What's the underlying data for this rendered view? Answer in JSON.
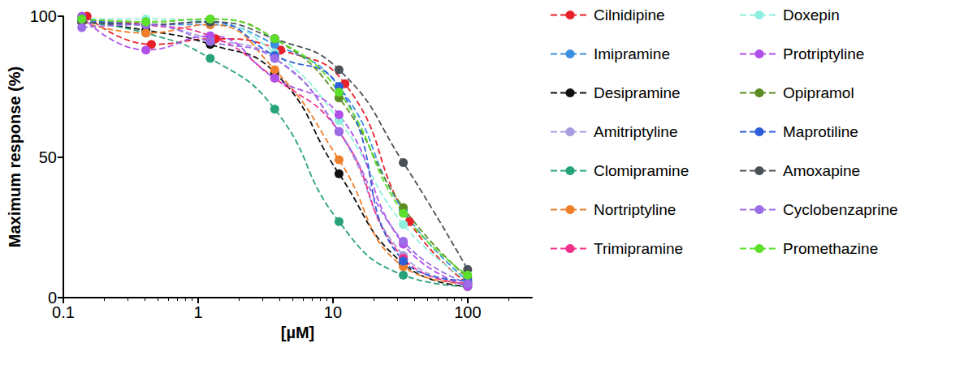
{
  "chart_data": {
    "type": "line",
    "x_label": "[µM]",
    "y_label": "Maximum response (%)",
    "log": "x",
    "grid": false,
    "legend": "right",
    "marker": "circle",
    "line_style": "dashed",
    "xlim": [
      0.1,
      300
    ],
    "xticks": [
      0.1,
      1,
      10,
      100
    ],
    "ylim": [
      0,
      100
    ],
    "yticks": [
      0,
      50,
      100
    ],
    "x": [
      0.137,
      0.41,
      1.23,
      3.7,
      11.1,
      33.3,
      100
    ],
    "series": [
      {
        "name": "Cilnidipine",
        "color": "#e8202a",
        "x": [
          0.15,
          0.45,
          1.35,
          4.1,
          12.3,
          37,
          100
        ],
        "values": [
          100,
          90,
          92,
          88,
          76,
          27,
          5
        ]
      },
      {
        "name": "Imipramine",
        "color": "#3b8fe0",
        "values": [
          99,
          97,
          97,
          90,
          75,
          31,
          6
        ]
      },
      {
        "name": "Desipramine",
        "color": "#111111",
        "values": [
          98,
          95,
          90,
          80,
          44,
          12,
          4
        ]
      },
      {
        "name": "Amitriptyline",
        "color": "#a99be0",
        "values": [
          98,
          97,
          92,
          85,
          59,
          15,
          5
        ]
      },
      {
        "name": "Clomipramine",
        "color": "#27a37a",
        "values": [
          98,
          94,
          85,
          67,
          27,
          8,
          4
        ]
      },
      {
        "name": "Nortriptyline",
        "color": "#f07f2a",
        "values": [
          98,
          94,
          97,
          81,
          49,
          11,
          5
        ]
      },
      {
        "name": "Trimipramine",
        "color": "#f0308a",
        "values": [
          99,
          97,
          93,
          78,
          59,
          14,
          5
        ]
      },
      {
        "name": "Doxepin",
        "color": "#8ef0e0",
        "values": [
          99,
          99,
          98,
          87,
          63,
          26,
          6
        ]
      },
      {
        "name": "Protriptyline",
        "color": "#b050e8",
        "values": [
          100,
          88,
          93,
          78,
          65,
          19,
          4
        ]
      },
      {
        "name": "Opipramol",
        "color": "#5b8c22",
        "values": [
          99,
          98,
          99,
          92,
          71,
          32,
          7
        ]
      },
      {
        "name": "Maprotiline",
        "color": "#2f5fd8",
        "values": [
          99,
          97,
          98,
          86,
          75,
          13,
          6
        ]
      },
      {
        "name": "Amoxapine",
        "color": "#4a5258",
        "values": [
          98,
          97,
          98,
          92,
          81,
          48,
          10
        ]
      },
      {
        "name": "Cyclobenzaprine",
        "color": "#9b6be8",
        "values": [
          96,
          97,
          91,
          85,
          59,
          20,
          5
        ]
      },
      {
        "name": "Promethazine",
        "color": "#5ce02a",
        "values": [
          99,
          98,
          99,
          92,
          73,
          30,
          8
        ]
      }
    ]
  }
}
